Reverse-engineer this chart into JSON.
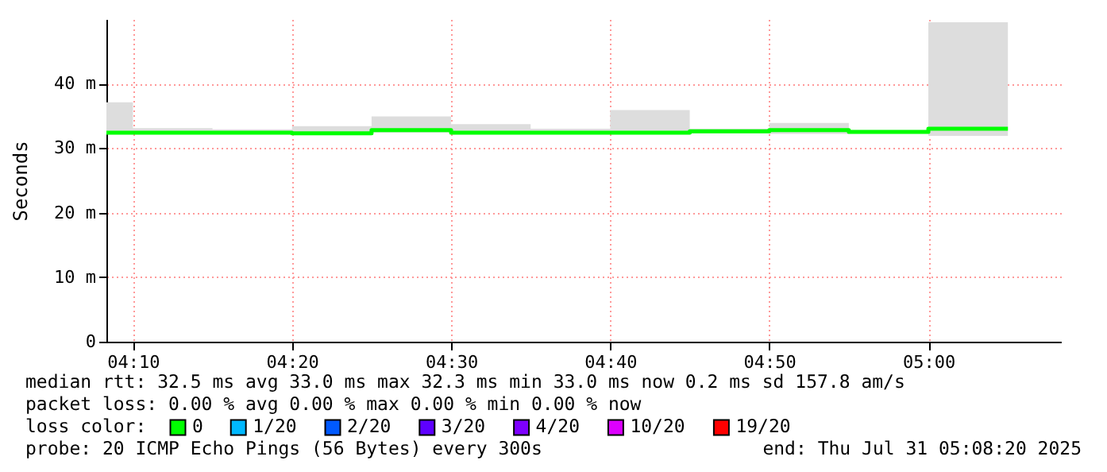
{
  "chart_data": {
    "type": "step",
    "ylabel": "Seconds",
    "legend_title": "loss color:",
    "legend": "bottom",
    "grid": true,
    "x": [
      "2025-07-31T04:08:20",
      "2025-07-31T04:10",
      "2025-07-31T04:15",
      "2025-07-31T04:20",
      "2025-07-31T04:25",
      "2025-07-31T04:30",
      "2025-07-31T04:35",
      "2025-07-31T04:40",
      "2025-07-31T04:45",
      "2025-07-31T04:50",
      "2025-07-31T04:55",
      "2025-07-31T05:00",
      "2025-07-31T05:05"
    ],
    "series": [
      {
        "name": "0",
        "color": "#00ff00",
        "values": [
          32.4,
          32.4,
          32.4,
          32.3,
          32.8,
          32.4,
          32.4,
          32.4,
          32.6,
          32.8,
          32.5,
          33.0,
          33.0
        ],
        "lower": [
          32.2,
          32.2,
          32.2,
          32.2,
          32.4,
          32.2,
          32.2,
          32.2,
          32.3,
          32.2,
          32.3,
          31.9,
          31.9
        ],
        "upper": [
          37.1,
          33.1,
          32.9,
          33.4,
          34.9,
          33.7,
          33.0,
          35.9,
          33.0,
          33.9,
          32.8,
          49.5,
          49.5
        ]
      },
      {
        "name": "1/20",
        "color": "#00b8ff",
        "values": [
          null,
          null,
          null,
          null,
          null,
          null,
          null,
          null,
          null,
          null,
          null,
          null,
          null
        ]
      },
      {
        "name": "2/20",
        "color": "#0059ff",
        "values": [
          null,
          null,
          null,
          null,
          null,
          null,
          null,
          null,
          null,
          null,
          null,
          null,
          null
        ]
      },
      {
        "name": "3/20",
        "color": "#5e00ff",
        "values": [
          null,
          null,
          null,
          null,
          null,
          null,
          null,
          null,
          null,
          null,
          null,
          null,
          null
        ]
      },
      {
        "name": "4/20",
        "color": "#7e00ff",
        "values": [
          null,
          null,
          null,
          null,
          null,
          null,
          null,
          null,
          null,
          null,
          null,
          null,
          null
        ]
      },
      {
        "name": "10/20",
        "color": "#dd00ff",
        "values": [
          null,
          null,
          null,
          null,
          null,
          null,
          null,
          null,
          null,
          null,
          null,
          null,
          null
        ]
      },
      {
        "name": "19/20",
        "color": "#ff0000",
        "values": [
          null,
          null,
          null,
          null,
          null,
          null,
          null,
          null,
          null,
          null,
          null,
          null,
          null
        ]
      }
    ],
    "xlim": [
      "2025-07-31T04:08:20",
      "2025-07-31T05:08:20"
    ],
    "xticks": [
      {
        "value": "2025-07-31T04:10",
        "label": "04:10"
      },
      {
        "value": "2025-07-31T04:20",
        "label": "04:20"
      },
      {
        "value": "2025-07-31T04:30",
        "label": "04:30"
      },
      {
        "value": "2025-07-31T04:40",
        "label": "04:40"
      },
      {
        "value": "2025-07-31T04:50",
        "label": "04:50"
      },
      {
        "value": "2025-07-31T05:00",
        "label": "05:00"
      }
    ],
    "ylim": [
      0,
      50
    ],
    "yticks": [
      0,
      {
        "value": 10,
        "label": "10 m"
      },
      {
        "value": 20,
        "label": "20 m"
      },
      {
        "value": 30,
        "label": "30 m"
      },
      {
        "value": 40,
        "label": "40 m"
      }
    ],
    "annotations": [
      "median rtt:  32.5 ms avg  33.0 ms max  32.3 ms min  33.0 ms now  0.2 ms sd  157.8   am/s",
      "packet loss: 0.00 % avg  0.00 % max  0.00 % min  0.00 % now",
      "probe:       20 ICMP Echo Pings (56 Bytes) every 300s",
      "end: Thu Jul 31 05:08:20 2025"
    ]
  }
}
